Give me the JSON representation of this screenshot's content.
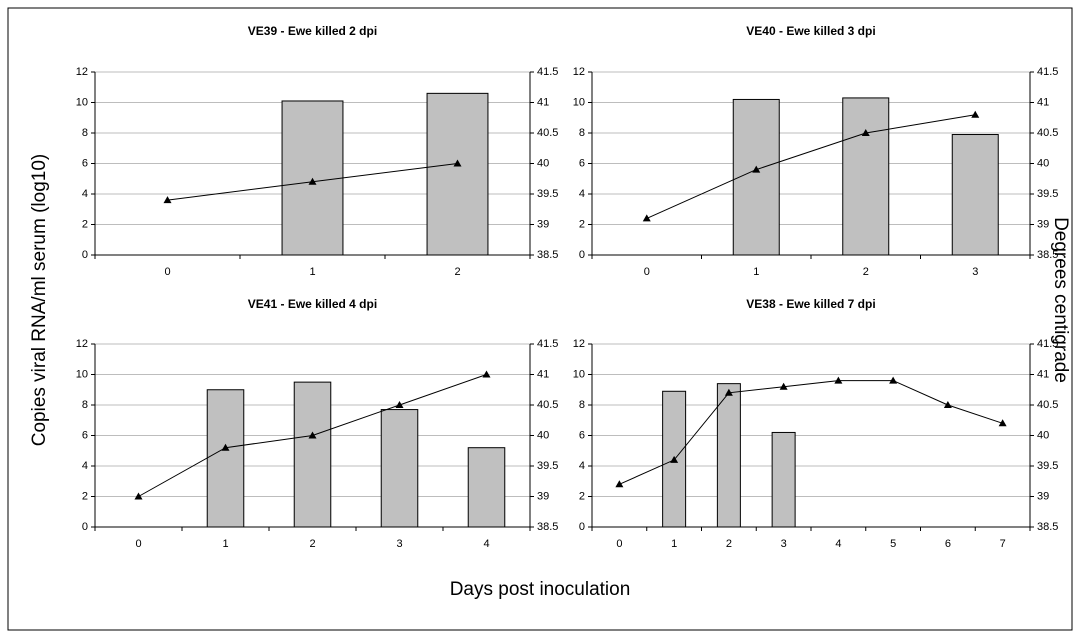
{
  "ylabel": "Copies viral RNA/ml serum (log10)",
  "y2label": "Degrees centigrade",
  "xlabel": "Days post inoculation",
  "chart_data": [
    {
      "type": "bar",
      "title": "VE39 - Ewe killed 2 dpi",
      "categories": [
        0,
        1,
        2
      ],
      "series": [
        {
          "type": "bar",
          "color": "#c0c0c0",
          "values": [
            null,
            10.1,
            10.6
          ]
        },
        {
          "type": "line",
          "axis": "y2",
          "color": "#000000",
          "values": [
            39.4,
            39.7,
            40.0
          ]
        }
      ],
      "ylim": [
        0,
        12
      ],
      "yticks": [
        0,
        2,
        4,
        6,
        8,
        10,
        12
      ],
      "y2lim": [
        38.5,
        41.5
      ],
      "y2ticks": [
        38.5,
        39,
        39.5,
        40,
        40.5,
        41,
        41.5
      ],
      "grid": true
    },
    {
      "type": "bar",
      "title": "VE40 - Ewe killed 3 dpi",
      "categories": [
        0,
        1,
        2,
        3
      ],
      "series": [
        {
          "type": "bar",
          "color": "#c0c0c0",
          "values": [
            null,
            10.2,
            10.3,
            7.9
          ]
        },
        {
          "type": "line",
          "axis": "y2",
          "color": "#000000",
          "values": [
            39.1,
            39.9,
            40.5,
            40.8
          ]
        }
      ],
      "ylim": [
        0,
        12
      ],
      "yticks": [
        0,
        2,
        4,
        6,
        8,
        10,
        12
      ],
      "y2lim": [
        38.5,
        41.5
      ],
      "y2ticks": [
        38.5,
        39,
        39.5,
        40,
        40.5,
        41,
        41.5
      ],
      "grid": true
    },
    {
      "type": "bar",
      "title": "VE41 - Ewe killed 4 dpi",
      "categories": [
        0,
        1,
        2,
        3,
        4
      ],
      "series": [
        {
          "type": "bar",
          "color": "#c0c0c0",
          "values": [
            null,
            9.0,
            9.5,
            7.7,
            5.2
          ]
        },
        {
          "type": "line",
          "axis": "y2",
          "color": "#000000",
          "values": [
            39.0,
            39.8,
            40.0,
            40.5,
            41.0
          ]
        }
      ],
      "ylim": [
        0,
        12
      ],
      "yticks": [
        0,
        2,
        4,
        6,
        8,
        10,
        12
      ],
      "y2lim": [
        38.5,
        41.5
      ],
      "y2ticks": [
        38.5,
        39,
        39.5,
        40,
        40.5,
        41,
        41.5
      ],
      "grid": true
    },
    {
      "type": "bar",
      "title": "VE38 - Ewe killed 7 dpi",
      "categories": [
        0,
        1,
        2,
        3,
        4,
        5,
        6,
        7
      ],
      "series": [
        {
          "type": "bar",
          "color": "#c0c0c0",
          "values": [
            null,
            8.9,
            9.4,
            6.2,
            null,
            null,
            null,
            null
          ]
        },
        {
          "type": "line",
          "axis": "y2",
          "color": "#000000",
          "values": [
            39.2,
            39.6,
            40.7,
            40.8,
            40.9,
            40.9,
            40.5,
            40.2
          ]
        }
      ],
      "ylim": [
        0,
        12
      ],
      "yticks": [
        0,
        2,
        4,
        6,
        8,
        10,
        12
      ],
      "y2lim": [
        38.5,
        41.5
      ],
      "y2ticks": [
        38.5,
        39,
        39.5,
        40,
        40.5,
        41,
        41.5
      ],
      "grid": true
    }
  ]
}
